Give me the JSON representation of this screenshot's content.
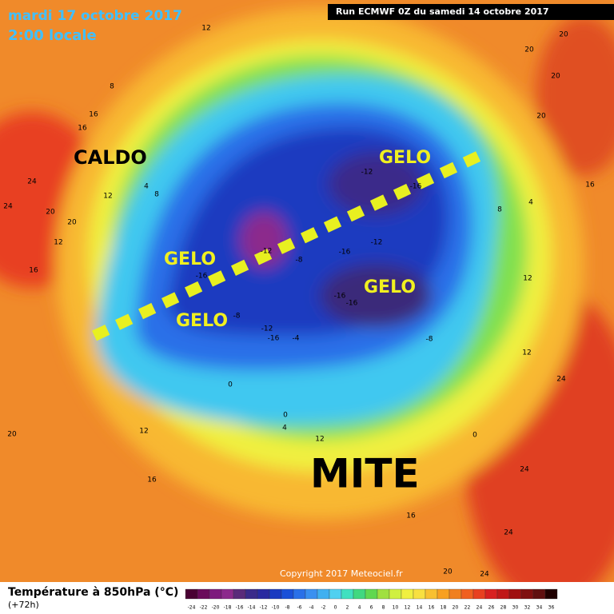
{
  "header": {
    "date": "mardi 17 octobre 2017",
    "time": "2:00 locale",
    "run": "Run ECMWF 0Z du samedi 14 octobre 2017"
  },
  "annotations": [
    "CALDO",
    "GELO",
    "GELO",
    "GELO",
    "GELO",
    "MITE"
  ],
  "contour_labels": [
    20,
    20,
    20,
    20,
    12,
    8,
    16,
    16,
    24,
    24,
    20,
    20,
    12,
    12,
    16,
    4,
    8,
    -12,
    -16,
    -12,
    -16,
    -16,
    -16,
    -8,
    -8,
    -12,
    -16,
    -4,
    0,
    0,
    4,
    12,
    12,
    16,
    20,
    24,
    24,
    24,
    24,
    16,
    12,
    12,
    8,
    4,
    16,
    -8,
    -16,
    -12,
    0,
    20
  ],
  "footer": {
    "title": "Température à 850hPa (°C)",
    "lead": "(+72h)",
    "copyright": "Copyright 2017 Meteociel.fr"
  },
  "legend": {
    "scale": [
      -24,
      -22,
      -20,
      -18,
      -16,
      -14,
      -12,
      -10,
      -8,
      -6,
      -4,
      -2,
      0,
      2,
      4,
      6,
      8,
      10,
      12,
      14,
      16,
      18,
      20,
      22,
      24,
      26,
      28,
      30,
      32,
      34,
      36
    ],
    "colors": [
      "#4a0033",
      "#6a0a5a",
      "#7d1a7d",
      "#8c2a8c",
      "#5a2a7a",
      "#3a2a8a",
      "#2a2aa0",
      "#1a3ac0",
      "#1a50d8",
      "#2a70e8",
      "#3a90f0",
      "#40b0f0",
      "#50d0f0",
      "#40e0c0",
      "#40d880",
      "#60d850",
      "#a0e040",
      "#d0f040",
      "#f0f040",
      "#f8e040",
      "#f8c030",
      "#f8a020",
      "#f08020",
      "#f06020",
      "#e84020",
      "#d82020",
      "#c01818",
      "#a01010",
      "#801010",
      "#601010",
      "#200000"
    ]
  }
}
